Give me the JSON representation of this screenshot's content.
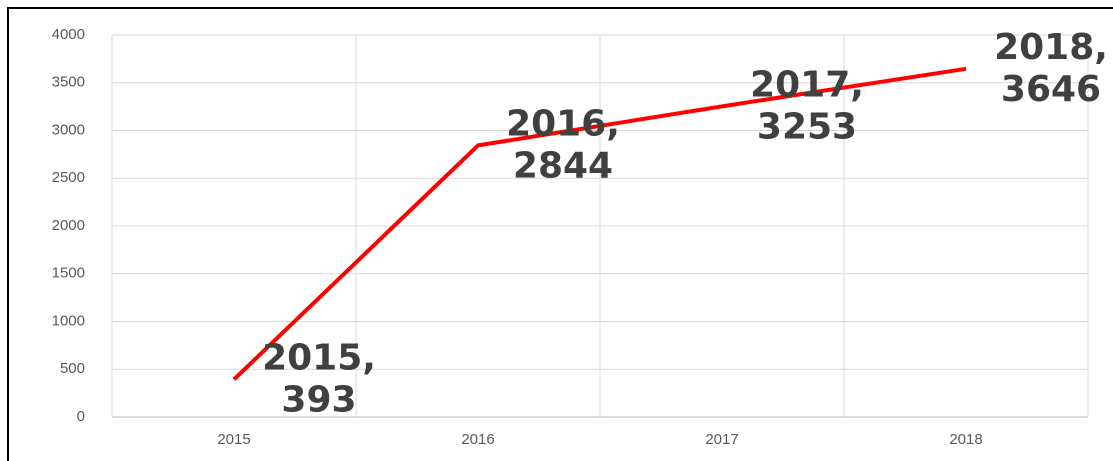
{
  "chart_data": {
    "type": "line",
    "categories": [
      "2015",
      "2016",
      "2017",
      "2018"
    ],
    "series": [
      {
        "color": "#ff0000",
        "values": [
          393,
          2844,
          3253,
          3646
        ],
        "value_labels": [
          [
            "2015,",
            "393"
          ],
          [
            "2016,",
            "2844"
          ],
          [
            "2017,",
            "3253"
          ],
          [
            "2018,",
            "3646"
          ]
        ]
      }
    ],
    "ylim": [
      0,
      4000
    ],
    "yticks": [
      0,
      500,
      1000,
      1500,
      2000,
      2500,
      3000,
      3500,
      4000
    ],
    "grid": true
  }
}
